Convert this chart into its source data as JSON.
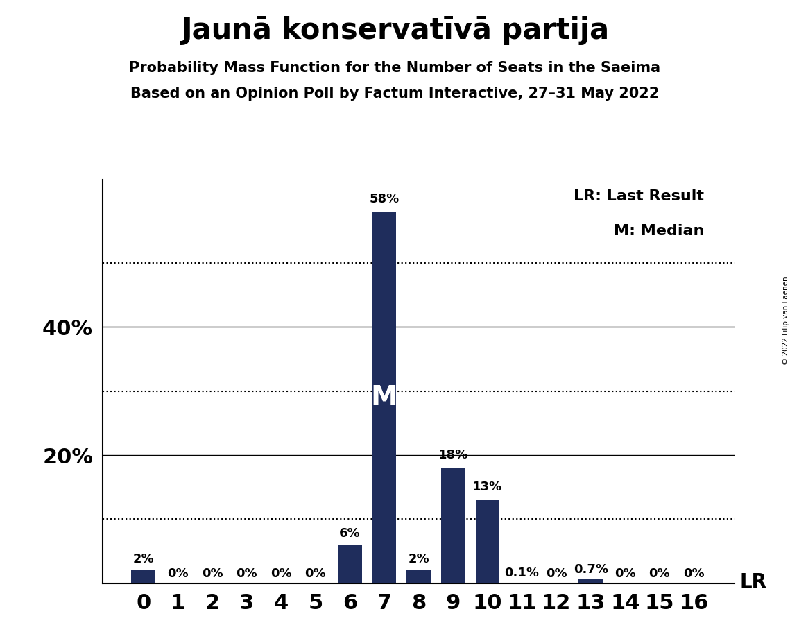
{
  "title": "Jaunā konservatīvā partija",
  "subtitle1": "Probability Mass Function for the Number of Seats in the Saeima",
  "subtitle2": "Based on an Opinion Poll by Factum Interactive, 27–31 May 2022",
  "copyright": "© 2022 Filip van Laenen",
  "categories": [
    0,
    1,
    2,
    3,
    4,
    5,
    6,
    7,
    8,
    9,
    10,
    11,
    12,
    13,
    14,
    15,
    16
  ],
  "values": [
    2.0,
    0.0,
    0.0,
    0.0,
    0.0,
    0.0,
    6.0,
    58.0,
    2.0,
    18.0,
    13.0,
    0.1,
    0.0,
    0.7,
    0.0,
    0.0,
    0.0
  ],
  "bar_labels": [
    "2%",
    "0%",
    "0%",
    "0%",
    "0%",
    "0%",
    "6%",
    "58%",
    "2%",
    "18%",
    "13%",
    "0.1%",
    "0%",
    "0.7%",
    "0%",
    "0%",
    "0%"
  ],
  "bar_color": "#1f2d5c",
  "median_seat": 7,
  "median_label": "M",
  "lr_legend": "LR: Last Result",
  "m_legend": "M: Median",
  "lr_label": "LR",
  "ylim_max": 63,
  "dotted_yticks": [
    10,
    30,
    50
  ],
  "solid_yticks": [
    20,
    40
  ],
  "ytick_positions": [
    20,
    40
  ],
  "ytick_labels": [
    "20%",
    "40%"
  ],
  "background_color": "#ffffff",
  "title_fontsize": 30,
  "subtitle_fontsize": 15,
  "axis_tick_fontsize": 22,
  "bar_label_fontsize": 13,
  "legend_fontsize": 16
}
